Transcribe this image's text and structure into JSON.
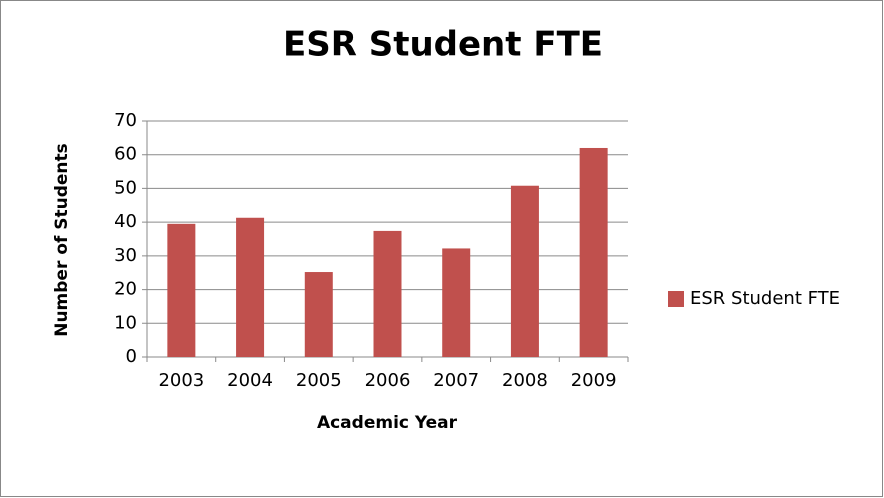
{
  "chart_data": {
    "type": "bar",
    "title": "ESR Student FTE",
    "x_label": "Academic Year",
    "y_label": "Number of Students",
    "categories": [
      "2003",
      "2004",
      "2005",
      "2006",
      "2007",
      "2008",
      "2009"
    ],
    "series": [
      {
        "name": "ESR Student FTE",
        "color": "#c0504d",
        "values": [
          39.5,
          41.3,
          25.2,
          37.4,
          32.2,
          50.8,
          62
        ]
      }
    ],
    "ylim": [
      0,
      70
    ],
    "yticks": [
      0,
      10,
      20,
      30,
      40,
      50,
      60,
      70
    ],
    "grid": true,
    "legend": "right"
  }
}
